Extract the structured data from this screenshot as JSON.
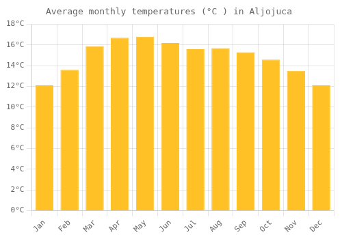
{
  "chart_data": {
    "type": "bar",
    "title": "Average monthly temperatures (°C ) in Aljojuca",
    "categories": [
      "Jan",
      "Feb",
      "Mar",
      "Apr",
      "May",
      "Jun",
      "Jul",
      "Aug",
      "Sep",
      "Oct",
      "Nov",
      "Dec"
    ],
    "values": [
      12.1,
      13.6,
      15.9,
      16.7,
      16.8,
      16.2,
      15.6,
      15.7,
      15.3,
      14.6,
      13.5,
      12.1
    ],
    "color": "#FFC125",
    "ylim": [
      0,
      18
    ],
    "yticks": [
      {
        "value": 0,
        "label": "0°C"
      },
      {
        "value": 2,
        "label": "2°C"
      },
      {
        "value": 4,
        "label": "4°C"
      },
      {
        "value": 6,
        "label": "6°C"
      },
      {
        "value": 8,
        "label": "8°C"
      },
      {
        "value": 10,
        "label": "10°C"
      },
      {
        "value": 12,
        "label": "12°C"
      },
      {
        "value": 14,
        "label": "14°C"
      },
      {
        "value": 16,
        "label": "16°C"
      },
      {
        "value": 18,
        "label": "18°C"
      }
    ],
    "grid": true
  }
}
